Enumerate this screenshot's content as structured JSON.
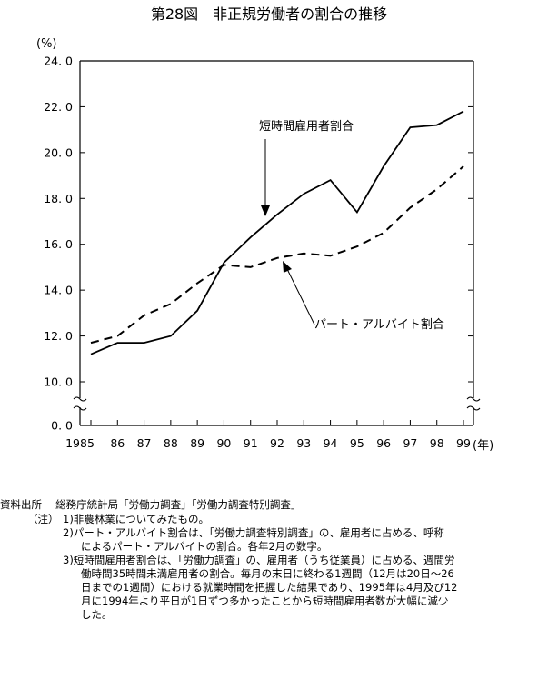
{
  "title": "第28図　非正規労働者の割合の推移",
  "chart_data": {
    "type": "line",
    "title": "第28図　非正規労働者の割合の推移",
    "y_unit": "(%)",
    "x_unit": "(年)",
    "ylim": [
      0,
      24
    ],
    "y_break": [
      0,
      10
    ],
    "yticks": [
      "0.0",
      "10.0",
      "12.0",
      "14.0",
      "16.0",
      "18.0",
      "20.0",
      "22.0",
      "24.0"
    ],
    "x": [
      1985,
      1986,
      1987,
      1988,
      1989,
      1990,
      1991,
      1992,
      1993,
      1994,
      1995,
      1996,
      1997,
      1998,
      1999
    ],
    "xtick_labels": [
      "1985",
      "86",
      "87",
      "88",
      "89",
      "90",
      "91",
      "92",
      "93",
      "94",
      "95",
      "96",
      "97",
      "98",
      "99"
    ],
    "grid": false,
    "series": [
      {
        "name": "短時間雇用者割合",
        "style": "solid",
        "values": [
          11.2,
          11.7,
          11.7,
          12.0,
          13.1,
          15.2,
          16.3,
          17.3,
          18.2,
          18.8,
          17.4,
          19.4,
          21.1,
          21.2,
          21.8
        ]
      },
      {
        "name": "パート・アルバイト割合",
        "style": "dashed",
        "values": [
          11.7,
          12.0,
          12.9,
          13.4,
          14.3,
          15.1,
          15.0,
          15.4,
          15.6,
          15.5,
          15.9,
          16.5,
          17.6,
          18.4,
          19.4
        ]
      }
    ],
    "annotations": [
      "短時間雇用者割合",
      "パート・アルバイト割合"
    ]
  },
  "notes": {
    "source_label": "資料出所",
    "source_text": "総務庁統計局「労働力調査」「労働力調査特別調査」",
    "note_label": "（注）",
    "items": [
      "1)非農林業についてみたもの。",
      "2)パート・アルバイト割合は､「労働力調査特別調査」の、雇用者に占める、呼称",
      "によるパート・アルバイトの割合。各年2月の数字。",
      "3)短時間雇用者割合は､「労働力調査」の、雇用者（うち従業員）に占める、週間労",
      "働時間35時間未満雇用者の割合。毎月の末日に終わる1週間（12月は20日～26",
      "日までの1週間）における就業時間を把握した結果であり、1995年は4月及び12",
      "月に1994年より平日が1日ずつ多かったことから短時間雇用者数が大幅に減少",
      "した。"
    ]
  }
}
